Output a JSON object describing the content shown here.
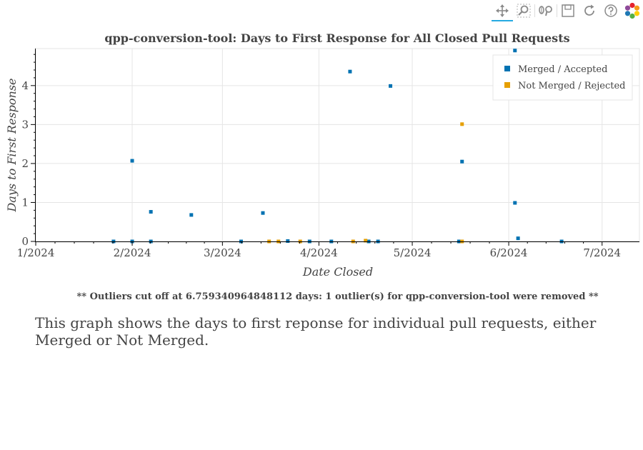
{
  "toolbar": {
    "tools": [
      {
        "name": "pan-tool",
        "icon": "move-icon",
        "active": true
      },
      {
        "name": "box-zoom-tool",
        "icon": "box-zoom-icon",
        "active": false
      },
      {
        "name": "wheel-zoom-tool",
        "icon": "wheel-zoom-icon",
        "active": false
      },
      {
        "name": "save-tool",
        "icon": "save-icon",
        "active": false
      },
      {
        "name": "reset-tool",
        "icon": "reset-icon",
        "active": false
      },
      {
        "name": "help-tool",
        "icon": "help-icon",
        "active": false
      },
      {
        "name": "bokeh-logo",
        "icon": "bokeh-logo-icon",
        "active": false
      }
    ]
  },
  "chart_data": {
    "type": "scatter",
    "title": "qpp-conversion-tool: Days to First Response for All Closed Pull Requests",
    "xlabel": "Date Closed",
    "ylabel": "Days to First Response",
    "xlim": [
      "2024-01-01",
      "2024-07-13"
    ],
    "ylim": [
      0,
      4.95
    ],
    "x_ticks": [
      {
        "date": "2024-01-01",
        "label": "1/2024"
      },
      {
        "date": "2024-02-01",
        "label": "2/2024"
      },
      {
        "date": "2024-03-01",
        "label": "3/2024"
      },
      {
        "date": "2024-04-01",
        "label": "4/2024"
      },
      {
        "date": "2024-05-01",
        "label": "5/2024"
      },
      {
        "date": "2024-06-01",
        "label": "6/2024"
      },
      {
        "date": "2024-07-01",
        "label": "7/2024"
      }
    ],
    "y_ticks": [
      0,
      1,
      2,
      3,
      4
    ],
    "grid": true,
    "legend_position": "top-right",
    "series": [
      {
        "name": "Merged / Accepted",
        "color": "#0072b2",
        "points": [
          {
            "x": "2024-01-26",
            "y": 0.0
          },
          {
            "x": "2024-02-01",
            "y": 2.07
          },
          {
            "x": "2024-02-01",
            "y": 0.0
          },
          {
            "x": "2024-02-07",
            "y": 0.76
          },
          {
            "x": "2024-02-07",
            "y": 0.0
          },
          {
            "x": "2024-02-20",
            "y": 0.68
          },
          {
            "x": "2024-03-07",
            "y": 0.0
          },
          {
            "x": "2024-03-14",
            "y": 0.73
          },
          {
            "x": "2024-03-22",
            "y": 0.01
          },
          {
            "x": "2024-03-29",
            "y": 0.0
          },
          {
            "x": "2024-04-05",
            "y": 0.0
          },
          {
            "x": "2024-04-11",
            "y": 4.36
          },
          {
            "x": "2024-04-17",
            "y": 0.0
          },
          {
            "x": "2024-04-20",
            "y": 0.0
          },
          {
            "x": "2024-04-24",
            "y": 3.99
          },
          {
            "x": "2024-05-16",
            "y": 0.0
          },
          {
            "x": "2024-05-17",
            "y": 2.05
          },
          {
            "x": "2024-06-03",
            "y": 4.9
          },
          {
            "x": "2024-06-03",
            "y": 0.99
          },
          {
            "x": "2024-06-04",
            "y": 0.08
          },
          {
            "x": "2024-06-18",
            "y": 0.0
          }
        ]
      },
      {
        "name": "Not Merged / Rejected",
        "color": "#e69f00",
        "points": [
          {
            "x": "2024-03-16",
            "y": 0.0
          },
          {
            "x": "2024-03-19",
            "y": 0.0
          },
          {
            "x": "2024-03-26",
            "y": 0.0
          },
          {
            "x": "2024-04-12",
            "y": 0.0
          },
          {
            "x": "2024-04-16",
            "y": 0.02
          },
          {
            "x": "2024-05-17",
            "y": 3.01
          },
          {
            "x": "2024-05-17",
            "y": 0.0
          }
        ]
      }
    ]
  },
  "note": "** Outliers cut off at 6.759340964848112 days: 1 outlier(s) for qpp-conversion-tool were removed **",
  "description": "This graph shows the days to first reponse for individual pull requests, either Merged or Not Merged."
}
